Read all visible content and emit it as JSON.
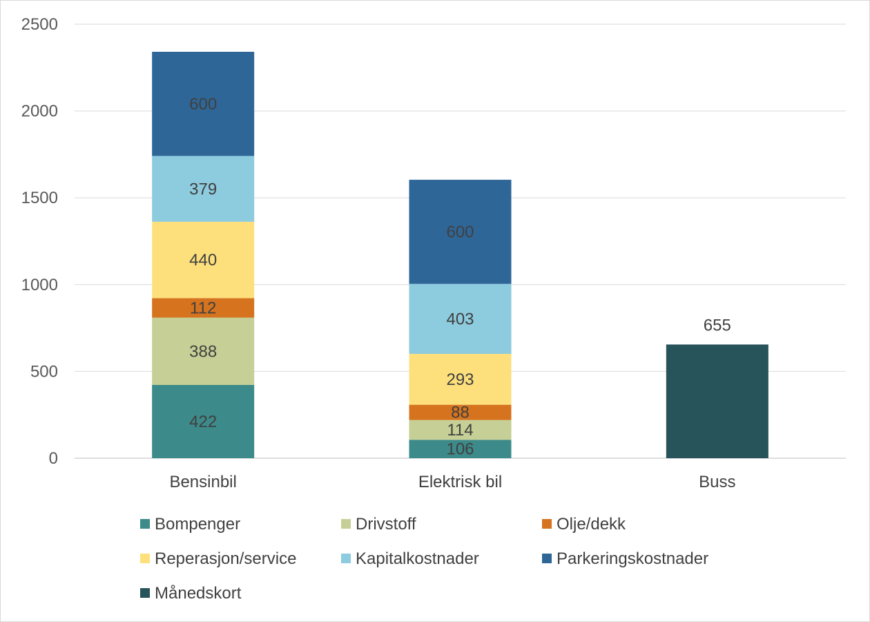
{
  "chart_data": {
    "type": "bar",
    "stacked": true,
    "categories": [
      "Bensinbil",
      "Elektrisk bil",
      "Buss"
    ],
    "series": [
      {
        "name": "Bompenger",
        "color": "#3c8a8a",
        "values": [
          422,
          106,
          null
        ]
      },
      {
        "name": "Drivstoff",
        "color": "#c6cf95",
        "values": [
          388,
          114,
          null
        ]
      },
      {
        "name": "Olje/dekk",
        "color": "#d6731e",
        "values": [
          112,
          88,
          null
        ]
      },
      {
        "name": "Reperasjon/service",
        "color": "#fde07c",
        "values": [
          440,
          293,
          null
        ]
      },
      {
        "name": "Kapitalkostnader",
        "color": "#8dcbde",
        "values": [
          379,
          403,
          null
        ]
      },
      {
        "name": "Parkeringskostnader",
        "color": "#2f6698",
        "values": [
          600,
          600,
          null
        ]
      },
      {
        "name": "Månedskort",
        "color": "#27535a",
        "values": [
          null,
          null,
          655
        ]
      }
    ],
    "ylim": [
      0,
      2500
    ],
    "yticks": [
      0,
      500,
      1000,
      1500,
      2000,
      2500
    ],
    "grid": true,
    "legend_position": "bottom",
    "data_labels": true
  }
}
